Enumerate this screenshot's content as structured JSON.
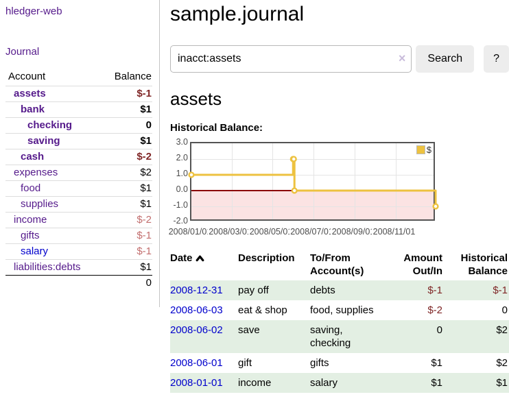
{
  "app": {
    "brand": "hledger-web",
    "nav": {
      "journal": "Journal"
    }
  },
  "colors": {
    "visited_link_purple": "#551a8b",
    "link_blue": "#0000cc",
    "negative_strong": "#7f2626",
    "negative_soft": "#c26e6e",
    "row_stripe_green": "#e3efe3",
    "series_gold": "#edc240",
    "negative_region_pink": "#fbe3e3",
    "zero_line_red": "#8b0000"
  },
  "sidebar": {
    "accounts_header": {
      "account": "Account",
      "balance": "Balance"
    },
    "accounts": [
      {
        "name": "assets",
        "indent": 1,
        "balance": "$-1",
        "bold": true,
        "balance_tone": "neg-strong",
        "link_color": "purple"
      },
      {
        "name": "bank",
        "indent": 2,
        "balance": "$1",
        "bold": true,
        "balance_tone": "",
        "link_color": "purple"
      },
      {
        "name": "checking",
        "indent": 3,
        "balance": "0",
        "bold": true,
        "balance_tone": "",
        "link_color": "purple"
      },
      {
        "name": "saving",
        "indent": 3,
        "balance": "$1",
        "bold": true,
        "balance_tone": "",
        "link_color": "purple"
      },
      {
        "name": "cash",
        "indent": 2,
        "balance": "$-2",
        "bold": true,
        "balance_tone": "neg-strong",
        "link_color": "purple"
      },
      {
        "name": "expenses",
        "indent": 1,
        "balance": "$2",
        "bold": false,
        "balance_tone": "",
        "link_color": "purple"
      },
      {
        "name": "food",
        "indent": 2,
        "balance": "$1",
        "bold": false,
        "balance_tone": "",
        "link_color": "purple"
      },
      {
        "name": "supplies",
        "indent": 2,
        "balance": "$1",
        "bold": false,
        "balance_tone": "",
        "link_color": "purple"
      },
      {
        "name": "income",
        "indent": 1,
        "balance": "$-2",
        "bold": false,
        "balance_tone": "neg-soft",
        "link_color": "purple"
      },
      {
        "name": "gifts",
        "indent": 2,
        "balance": "$-1",
        "bold": false,
        "balance_tone": "neg-soft",
        "link_color": "purple"
      },
      {
        "name": "salary",
        "indent": 2,
        "balance": "$-1",
        "bold": false,
        "balance_tone": "neg-soft",
        "link_color": "blue"
      },
      {
        "name": "liabilities:debts",
        "indent": 1,
        "balance": "$1",
        "bold": false,
        "balance_tone": "",
        "link_color": "purple"
      }
    ],
    "total": "0"
  },
  "header": {
    "title": "sample.journal"
  },
  "search": {
    "value": "inacct:assets",
    "clear_icon": "×",
    "search_button": "Search",
    "help_button": "?"
  },
  "account_page": {
    "heading": "assets"
  },
  "chart_data": {
    "type": "line",
    "step": true,
    "title": "Historical Balance:",
    "series": [
      {
        "name": "$",
        "color": "#edc240",
        "points": [
          [
            "2008-01-01",
            1
          ],
          [
            "2008-06-01",
            2
          ],
          [
            "2008-06-02",
            2
          ],
          [
            "2008-06-03",
            0
          ],
          [
            "2008-12-31",
            -1
          ]
        ]
      }
    ],
    "x_range": [
      "2008-01-01",
      "2009-01-01"
    ],
    "ylim": [
      -2,
      3
    ],
    "y_ticks": [
      "3.0",
      "2.0",
      "1.0",
      "0.0",
      "-1.0",
      "-2.0"
    ],
    "x_ticks": [
      "2008/01/01",
      "2008/03/01",
      "2008/05/01",
      "2008/07/01",
      "2008/09/01",
      "2008/11/01"
    ],
    "legend_position": "top-right",
    "grid": true,
    "negative_region_shaded": true
  },
  "register": {
    "columns": [
      "Date",
      "Description",
      "To/From Account(s)",
      "Amount Out/In",
      "Historical Balance"
    ],
    "sort": {
      "column": "Date",
      "direction": "ascending"
    },
    "rows": [
      {
        "date": "2008-12-31",
        "description": "pay off",
        "accounts": "debts",
        "amount": "$-1",
        "balance": "$-1",
        "amount_negative": true,
        "balance_negative": true
      },
      {
        "date": "2008-06-03",
        "description": "eat & shop",
        "accounts": "food, supplies",
        "amount": "$-2",
        "balance": "0",
        "amount_negative": true,
        "balance_negative": false
      },
      {
        "date": "2008-06-02",
        "description": "save",
        "accounts": "saving, checking",
        "amount": "0",
        "balance": "$2",
        "amount_negative": false,
        "balance_negative": false
      },
      {
        "date": "2008-06-01",
        "description": "gift",
        "accounts": "gifts",
        "amount": "$1",
        "balance": "$2",
        "amount_negative": false,
        "balance_negative": false
      },
      {
        "date": "2008-01-01",
        "description": "income",
        "accounts": "salary",
        "amount": "$1",
        "balance": "$1",
        "amount_negative": false,
        "balance_negative": false
      }
    ]
  }
}
